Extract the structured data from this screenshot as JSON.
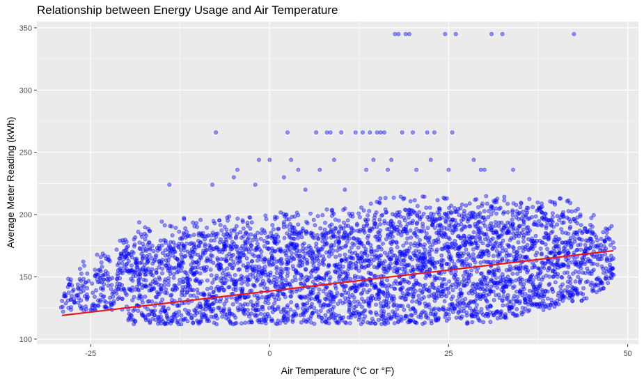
{
  "chart_data": {
    "type": "scatter",
    "title": "Relationship between Energy Usage and Air Temperature",
    "xlabel": "Air Temperature (°C or °F)",
    "ylabel": "Average Meter Reading (kWh)",
    "xlim": [
      -32.5,
      51.5
    ],
    "ylim": [
      96,
      355
    ],
    "x_ticks": [
      -25,
      0,
      25,
      50
    ],
    "x_tick_labels": [
      "-25",
      "0",
      "25",
      "50"
    ],
    "y_ticks": [
      100,
      150,
      200,
      250,
      300,
      350
    ],
    "y_tick_labels": [
      "100",
      "150",
      "200",
      "250",
      "300",
      "350"
    ],
    "grid": true,
    "colors": {
      "points": "#0000ff",
      "trend": "#e41a1c",
      "panel": "#ebebeb",
      "grid": "#ffffff"
    },
    "series": [
      {
        "name": "readings",
        "kind": "scatter",
        "description_points": [
          [
            -29,
            134
          ],
          [
            -28,
            147
          ],
          [
            -27,
            140
          ],
          [
            -26,
            152
          ],
          [
            -25,
            128
          ],
          [
            -24,
            157
          ],
          [
            -23,
            161
          ],
          [
            -22,
            144
          ],
          [
            -21,
            170
          ],
          [
            -20,
            176
          ],
          [
            -19,
            165
          ],
          [
            -18,
            186
          ],
          [
            -17,
            180
          ],
          [
            -16,
            172
          ],
          [
            -15,
            184
          ],
          [
            -14,
            178
          ],
          [
            -12,
            186
          ],
          [
            -10,
            182
          ],
          [
            -8,
            187
          ],
          [
            -6,
            185
          ],
          [
            -4,
            187
          ],
          [
            -2,
            186
          ],
          [
            0,
            188
          ],
          [
            2,
            190
          ],
          [
            4,
            189
          ],
          [
            6,
            188
          ],
          [
            8,
            191
          ],
          [
            10,
            190
          ],
          [
            12,
            194
          ],
          [
            14,
            197
          ],
          [
            16,
            200
          ],
          [
            18,
            203
          ],
          [
            20,
            205
          ],
          [
            22,
            206
          ],
          [
            24,
            206
          ],
          [
            26,
            206
          ],
          [
            28,
            207
          ],
          [
            30,
            207
          ],
          [
            32,
            206
          ],
          [
            34,
            206
          ],
          [
            36,
            206
          ],
          [
            38,
            205
          ],
          [
            40,
            203
          ],
          [
            42,
            197
          ],
          [
            44,
            190
          ],
          [
            46,
            185
          ],
          [
            48,
            180
          ]
        ],
        "outliers": [
          [
            -14,
            224
          ],
          [
            -8,
            224
          ],
          [
            -7.5,
            266
          ],
          [
            -5,
            230
          ],
          [
            -4.5,
            236
          ],
          [
            -2,
            224
          ],
          [
            -1.5,
            244
          ],
          [
            0,
            244
          ],
          [
            2,
            230
          ],
          [
            2.5,
            266
          ],
          [
            3,
            244
          ],
          [
            4,
            236
          ],
          [
            5,
            220
          ],
          [
            6.5,
            266
          ],
          [
            7,
            236
          ],
          [
            8,
            266
          ],
          [
            8.5,
            266
          ],
          [
            9,
            244
          ],
          [
            10,
            266
          ],
          [
            10.5,
            220
          ],
          [
            12,
            266
          ],
          [
            13,
            266
          ],
          [
            13.5,
            236
          ],
          [
            14,
            266
          ],
          [
            14.5,
            244
          ],
          [
            15,
            266
          ],
          [
            15.5,
            266
          ],
          [
            16,
            266
          ],
          [
            16.5,
            236
          ],
          [
            17,
            244
          ],
          [
            17.5,
            345
          ],
          [
            18,
            345
          ],
          [
            18.5,
            266
          ],
          [
            19,
            345
          ],
          [
            19.5,
            345
          ],
          [
            20,
            266
          ],
          [
            20.5,
            236
          ],
          [
            22,
            266
          ],
          [
            22.5,
            244
          ],
          [
            23,
            266
          ],
          [
            24.5,
            345
          ],
          [
            25,
            236
          ],
          [
            25.5,
            266
          ],
          [
            26,
            345
          ],
          [
            28.5,
            244
          ],
          [
            29.5,
            236
          ],
          [
            30,
            236
          ],
          [
            31,
            345
          ],
          [
            32.5,
            345
          ],
          [
            34,
            236
          ],
          [
            42.5,
            345
          ]
        ]
      },
      {
        "name": "linear trend",
        "kind": "line",
        "x": [
          -29,
          48
        ],
        "y": [
          119,
          171
        ]
      }
    ]
  }
}
